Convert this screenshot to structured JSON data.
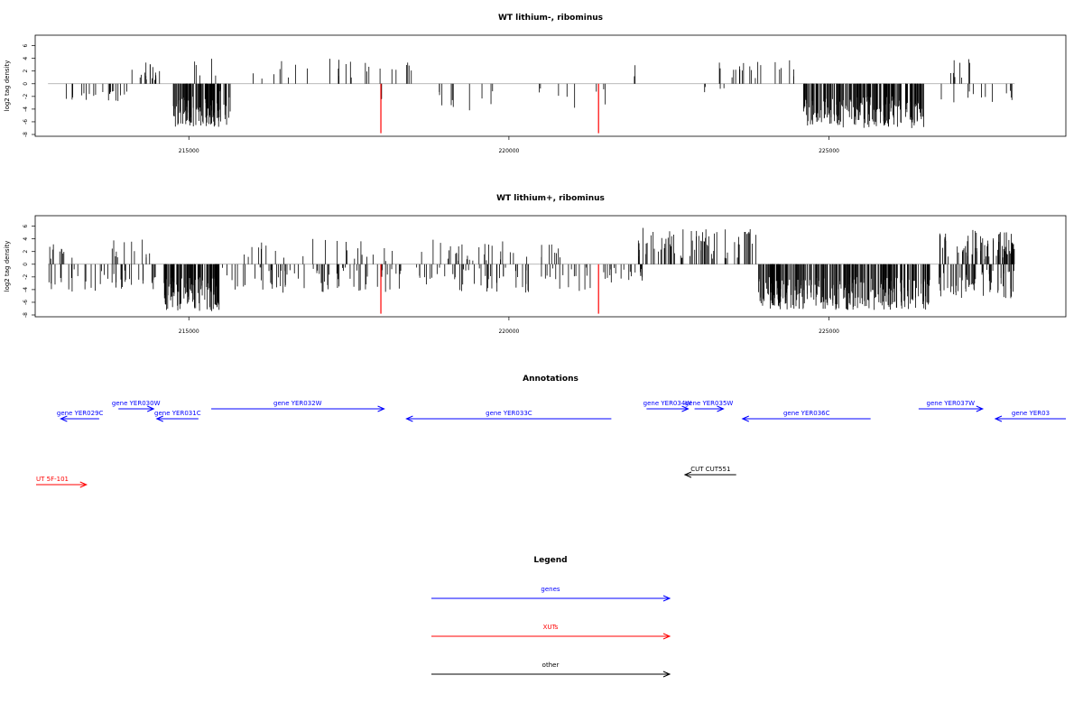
{
  "colors": {
    "gene": "#0000ff",
    "xut": "#ff0000",
    "other": "#000000",
    "baseline": "#a0a0a0",
    "bar": "#000000",
    "highlight": "#ff0000"
  },
  "chart_data": [
    {
      "type": "bar",
      "title": "WT lithium-, ribominus",
      "ylabel": "log2 tag density",
      "xlim": [
        212600,
        228700
      ],
      "ylim": [
        -8,
        6.8
      ],
      "xticks": [
        215000,
        220000,
        225000
      ],
      "yticks": [
        6,
        4,
        2,
        0,
        -2,
        -4,
        -6,
        -8
      ],
      "grid": false,
      "baseline_span": [
        212800,
        227900
      ],
      "regions": [
        {
          "start": 213050,
          "end": 213250,
          "n": 4,
          "min": 1.5,
          "max": 2.5,
          "dir": -1
        },
        {
          "start": 213250,
          "end": 213950,
          "n": 16,
          "min": 0.8,
          "max": 3.0,
          "dir": -1
        },
        {
          "start": 213950,
          "end": 214050,
          "n": 2,
          "min": 1.0,
          "max": 1.8,
          "dir": -1
        },
        {
          "start": 214100,
          "end": 214650,
          "n": 16,
          "min": 0.6,
          "max": 3.5,
          "dir": 1
        },
        {
          "start": 214750,
          "end": 215650,
          "n": 110,
          "min": 2.0,
          "max": 6.8,
          "dir": -1
        },
        {
          "start": 215000,
          "end": 218500,
          "n": 30,
          "min": 0.8,
          "max": 4.0,
          "dir": 1
        },
        {
          "start": 215100,
          "end": 215700,
          "n": 5,
          "min": 0.8,
          "max": 2.3,
          "dir": -1
        },
        {
          "start": 218000,
          "end": 218100,
          "n": 2,
          "min": 2.0,
          "max": 3.5,
          "dir": -1
        },
        {
          "start": 218900,
          "end": 219900,
          "n": 10,
          "min": 0.8,
          "max": 4.5,
          "dir": -1
        },
        {
          "start": 220400,
          "end": 221600,
          "n": 8,
          "min": 0.6,
          "max": 4.0,
          "dir": -1
        },
        {
          "start": 221900,
          "end": 222100,
          "n": 2,
          "min": 1.0,
          "max": 3.0,
          "dir": 1
        },
        {
          "start": 223100,
          "end": 224500,
          "n": 20,
          "min": 0.8,
          "max": 3.8,
          "dir": 1
        },
        {
          "start": 223000,
          "end": 223400,
          "n": 4,
          "min": 0.5,
          "max": 1.5,
          "dir": -1
        },
        {
          "start": 224600,
          "end": 226500,
          "n": 220,
          "min": 2.0,
          "max": 7.0,
          "dir": -1
        },
        {
          "start": 226600,
          "end": 227200,
          "n": 8,
          "min": 0.8,
          "max": 4.0,
          "dir": 1
        },
        {
          "start": 226700,
          "end": 227900,
          "n": 12,
          "min": 0.8,
          "max": 3.0,
          "dir": -1
        }
      ],
      "red_spikes": [
        {
          "x": 218000,
          "y": -7.8
        },
        {
          "x": 221400,
          "y": -7.8
        }
      ]
    },
    {
      "type": "bar",
      "title": "WT lithium+, ribominus",
      "ylabel": "log2 tag density",
      "xlim": [
        212600,
        228700
      ],
      "ylim": [
        -8,
        6.8
      ],
      "xticks": [
        215000,
        220000,
        225000
      ],
      "yticks": [
        6,
        4,
        2,
        0,
        -2,
        -4,
        -6,
        -8
      ],
      "grid": false,
      "baseline_span": [
        212800,
        227900
      ],
      "regions": [
        {
          "start": 212800,
          "end": 213200,
          "n": 10,
          "min": 0.8,
          "max": 3.2,
          "dir": 1
        },
        {
          "start": 212800,
          "end": 214600,
          "n": 40,
          "min": 0.8,
          "max": 4.5,
          "dir": -1
        },
        {
          "start": 213800,
          "end": 214600,
          "n": 12,
          "min": 0.8,
          "max": 4.0,
          "dir": 1
        },
        {
          "start": 214600,
          "end": 215500,
          "n": 120,
          "min": 2.0,
          "max": 7.5,
          "dir": -1
        },
        {
          "start": 215500,
          "end": 220800,
          "n": 60,
          "min": 0.5,
          "max": 4.0,
          "dir": 1
        },
        {
          "start": 215500,
          "end": 221300,
          "n": 130,
          "min": 0.5,
          "max": 4.5,
          "dir": -1
        },
        {
          "start": 221400,
          "end": 222100,
          "n": 20,
          "min": 0.5,
          "max": 3.0,
          "dir": -1
        },
        {
          "start": 222000,
          "end": 223900,
          "n": 70,
          "min": 0.8,
          "max": 5.8,
          "dir": 1
        },
        {
          "start": 223900,
          "end": 226600,
          "n": 280,
          "min": 2.0,
          "max": 7.2,
          "dir": -1
        },
        {
          "start": 226700,
          "end": 227900,
          "n": 70,
          "min": 0.8,
          "max": 5.5,
          "dir": 1
        },
        {
          "start": 226700,
          "end": 227900,
          "n": 60,
          "min": 0.8,
          "max": 5.5,
          "dir": -1
        }
      ],
      "red_spikes": [
        {
          "x": 218000,
          "y": -7.8
        },
        {
          "x": 221400,
          "y": -7.8
        }
      ]
    }
  ],
  "annotations": {
    "title": "Annotations",
    "xlim": [
      212600,
      228700
    ],
    "features": [
      {
        "label": "gene YER029C",
        "start": 213000,
        "end": 213600,
        "strand": "-",
        "type": "gene",
        "row": 1
      },
      {
        "label": "gene YER030W",
        "start": 213900,
        "end": 214450,
        "strand": "+",
        "type": "gene",
        "row": 0
      },
      {
        "label": "gene YER031C",
        "start": 214500,
        "end": 215150,
        "strand": "-",
        "type": "gene",
        "row": 1
      },
      {
        "label": "gene YER032W",
        "start": 215350,
        "end": 218050,
        "strand": "+",
        "type": "gene",
        "row": 0
      },
      {
        "label": "gene YER033C",
        "start": 218400,
        "end": 221600,
        "strand": "-",
        "type": "gene",
        "row": 1
      },
      {
        "label": "gene YER034W",
        "start": 222150,
        "end": 222800,
        "strand": "+",
        "type": "gene",
        "row": 0
      },
      {
        "label": "gene YER035W",
        "start": 222900,
        "end": 223350,
        "strand": "+",
        "type": "gene",
        "row": 0
      },
      {
        "label": "gene YER036C",
        "start": 223650,
        "end": 225650,
        "strand": "-",
        "type": "gene",
        "row": 1
      },
      {
        "label": "gene YER037W",
        "start": 226400,
        "end": 227400,
        "strand": "+",
        "type": "gene",
        "row": 0
      },
      {
        "label": "gene YER03",
        "start": 227600,
        "end": 228700,
        "strand": "-",
        "type": "gene",
        "row": 1
      },
      {
        "label": "CUT CUT551",
        "start": 222750,
        "end": 223550,
        "strand": "-",
        "type": "other",
        "row": 2
      },
      {
        "label": "UT 5F-101",
        "start": 212600,
        "end": 213400,
        "strand": "+",
        "type": "xut",
        "row": 3
      }
    ]
  },
  "legend": {
    "title": "Legend",
    "items": [
      {
        "label": "genes",
        "color_key": "gene"
      },
      {
        "label": "XUTs",
        "color_key": "xut"
      },
      {
        "label": "other",
        "color_key": "other"
      }
    ]
  }
}
